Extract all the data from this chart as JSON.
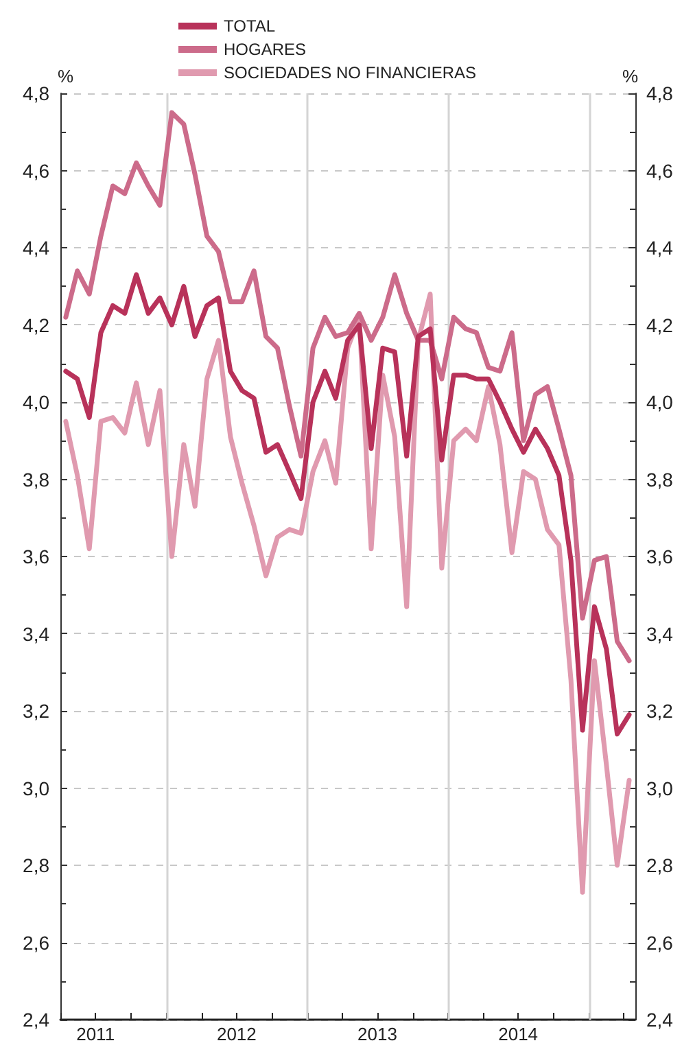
{
  "chart_data": {
    "type": "line",
    "ylabel": "%",
    "y2label": "%",
    "x": [
      "2011-04-15",
      "2011-05-15",
      "2011-06-15",
      "2011-07-15",
      "2011-08-15",
      "2011-09-15",
      "2011-10-15",
      "2011-11-15",
      "2011-12-15",
      "2012-01-15",
      "2012-02-15",
      "2012-03-15",
      "2012-04-15",
      "2012-05-15",
      "2012-06-15",
      "2012-07-15",
      "2012-08-15",
      "2012-09-15",
      "2012-10-15",
      "2012-11-15",
      "2012-12-15",
      "2013-01-15",
      "2013-02-15",
      "2013-03-15",
      "2013-04-15",
      "2013-05-15",
      "2013-06-15",
      "2013-07-15",
      "2013-08-15",
      "2013-09-15",
      "2013-10-15",
      "2013-11-15",
      "2013-12-15",
      "2014-01-15",
      "2014-02-15",
      "2014-03-15",
      "2014-04-15",
      "2014-05-15",
      "2014-06-15",
      "2014-07-15",
      "2014-08-15",
      "2014-09-15",
      "2014-10-15",
      "2014-11-15",
      "2014-12-15",
      "2015-01-15",
      "2015-02-15",
      "2015-03-15",
      "2015-04-15"
    ],
    "series": [
      {
        "name": "TOTAL",
        "color": "#b8325a",
        "values": [
          4.08,
          4.06,
          3.96,
          4.18,
          4.25,
          4.23,
          4.33,
          4.23,
          4.27,
          4.2,
          4.3,
          4.17,
          4.25,
          4.27,
          4.08,
          4.03,
          4.01,
          3.87,
          3.89,
          3.82,
          3.75,
          4.0,
          4.08,
          4.01,
          4.16,
          4.2,
          3.88,
          4.14,
          4.13,
          3.86,
          4.17,
          4.19,
          3.85,
          4.07,
          4.07,
          4.06,
          4.06,
          4.0,
          3.93,
          3.87,
          3.93,
          3.88,
          3.81,
          3.59,
          3.15,
          3.47,
          3.36,
          3.14,
          3.19
        ]
      },
      {
        "name": "HOGARES",
        "color": "#cc6b8a",
        "values": [
          4.22,
          4.34,
          4.28,
          4.43,
          4.56,
          4.54,
          4.62,
          4.56,
          4.51,
          4.75,
          4.72,
          4.59,
          4.43,
          4.39,
          4.26,
          4.26,
          4.34,
          4.17,
          4.14,
          3.99,
          3.86,
          4.14,
          4.22,
          4.17,
          4.18,
          4.23,
          4.16,
          4.22,
          4.33,
          4.23,
          4.16,
          4.16,
          4.06,
          4.22,
          4.19,
          4.18,
          4.09,
          4.08,
          4.18,
          3.9,
          4.02,
          4.04,
          3.93,
          3.81,
          3.44,
          3.59,
          3.6,
          3.38,
          3.33
        ]
      },
      {
        "name": "SOCIEDADES NO FINANCIERAS",
        "color": "#e09aaf",
        "values": [
          3.95,
          3.81,
          3.62,
          3.95,
          3.96,
          3.92,
          4.05,
          3.89,
          4.03,
          3.6,
          3.89,
          3.73,
          4.06,
          4.16,
          3.91,
          3.79,
          3.68,
          3.55,
          3.65,
          3.67,
          3.66,
          3.82,
          3.9,
          3.79,
          4.14,
          4.22,
          3.62,
          4.07,
          3.91,
          3.47,
          4.16,
          4.28,
          3.57,
          3.9,
          3.93,
          3.9,
          4.04,
          3.89,
          3.61,
          3.82,
          3.8,
          3.67,
          3.63,
          3.28,
          2.73,
          3.33,
          3.06,
          2.8,
          3.02
        ]
      }
    ],
    "xlim": [
      "2011-04-01",
      "2015-05-01"
    ],
    "xticks": [
      {
        "value": "2011-04-01",
        "label": null
      },
      {
        "value": "2011-07-01",
        "label": "2011"
      },
      {
        "value": "2011-10-01",
        "label": null
      },
      {
        "value": "2012-01-01",
        "label": null
      },
      {
        "value": "2012-04-01",
        "label": null
      },
      {
        "value": "2012-07-01",
        "label": "2012"
      },
      {
        "value": "2012-10-01",
        "label": null
      },
      {
        "value": "2013-01-01",
        "label": null
      },
      {
        "value": "2013-04-01",
        "label": null
      },
      {
        "value": "2013-07-01",
        "label": "2013"
      },
      {
        "value": "2013-10-01",
        "label": null
      },
      {
        "value": "2014-01-01",
        "label": null
      },
      {
        "value": "2014-04-01",
        "label": null
      },
      {
        "value": "2014-07-01",
        "label": "2014"
      },
      {
        "value": "2014-10-01",
        "label": null
      },
      {
        "value": "2015-01-01",
        "label": null
      },
      {
        "value": "2015-04-01",
        "label": null
      }
    ],
    "ylim": [
      2.4,
      4.8
    ],
    "yticks": [
      {
        "value": 2.4,
        "label": "2,4"
      },
      {
        "value": 2.5,
        "label": null
      },
      {
        "value": 2.6,
        "label": "2,6"
      },
      {
        "value": 2.7,
        "label": null
      },
      {
        "value": 2.8,
        "label": "2,8"
      },
      {
        "value": 2.9,
        "label": null
      },
      {
        "value": 3.0,
        "label": "3,0"
      },
      {
        "value": 3.1,
        "label": null
      },
      {
        "value": 3.2,
        "label": "3,2"
      },
      {
        "value": 3.3,
        "label": null
      },
      {
        "value": 3.4,
        "label": "3,4"
      },
      {
        "value": 3.5,
        "label": null
      },
      {
        "value": 3.6,
        "label": "3,6"
      },
      {
        "value": 3.7,
        "label": null
      },
      {
        "value": 3.8,
        "label": "3,8"
      },
      {
        "value": 3.9,
        "label": null
      },
      {
        "value": 4.0,
        "label": "4,0"
      },
      {
        "value": 4.1,
        "label": null
      },
      {
        "value": 4.2,
        "label": "4,2"
      },
      {
        "value": 4.3,
        "label": null
      },
      {
        "value": 4.4,
        "label": "4,4"
      },
      {
        "value": 4.5,
        "label": null
      },
      {
        "value": 4.6,
        "label": "4,6"
      },
      {
        "value": 4.7,
        "label": null
      },
      {
        "value": 4.8,
        "label": "4,8"
      }
    ],
    "y2lim": [
      2.4,
      4.8
    ],
    "y2ticks": [
      {
        "value": 2.4,
        "label": "2,4"
      },
      {
        "value": 2.5,
        "label": null
      },
      {
        "value": 2.6,
        "label": "2,6"
      },
      {
        "value": 2.7,
        "label": null
      },
      {
        "value": 2.8,
        "label": "2,8"
      },
      {
        "value": 2.9,
        "label": null
      },
      {
        "value": 3.0,
        "label": "3,0"
      },
      {
        "value": 3.1,
        "label": null
      },
      {
        "value": 3.2,
        "label": "3,2"
      },
      {
        "value": 3.3,
        "label": null
      },
      {
        "value": 3.4,
        "label": "3,4"
      },
      {
        "value": 3.5,
        "label": null
      },
      {
        "value": 3.6,
        "label": "3,6"
      },
      {
        "value": 3.7,
        "label": null
      },
      {
        "value": 3.8,
        "label": "3,8"
      },
      {
        "value": 3.9,
        "label": null
      },
      {
        "value": 4.0,
        "label": "4,0"
      },
      {
        "value": 4.1,
        "label": null
      },
      {
        "value": 4.2,
        "label": "4,2"
      },
      {
        "value": 4.3,
        "label": null
      },
      {
        "value": 4.4,
        "label": "4,4"
      },
      {
        "value": 4.5,
        "label": null
      },
      {
        "value": 4.6,
        "label": "4,6"
      },
      {
        "value": 4.7,
        "label": null
      },
      {
        "value": 4.8,
        "label": "4,8"
      }
    ],
    "ref_lines": [
      {
        "axis": "x",
        "value": "2012-01-01",
        "color": "#d4d4d4"
      },
      {
        "axis": "x",
        "value": "2013-01-01",
        "color": "#d4d4d4"
      },
      {
        "axis": "x",
        "value": "2014-01-01",
        "color": "#d4d4d4"
      },
      {
        "axis": "x",
        "value": "2015-01-01",
        "color": "#d4d4d4"
      }
    ],
    "grid": "y",
    "legend": "top"
  }
}
